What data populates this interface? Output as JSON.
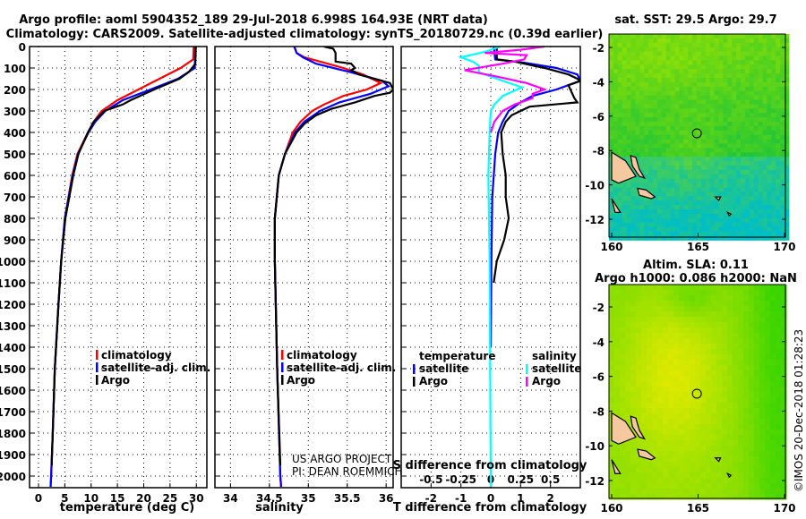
{
  "title": {
    "line1": "Argo profile: aoml 5904352_189 29-Jul-2018 6.998S 164.93E (NRT data)",
    "line2": "Climatology: CARS2009. Satellite-adjusted climatology: synTS_20180729.nc (0.39d earlier)"
  },
  "colors": {
    "climatology": "#ff0000",
    "satellite": "#0000ff",
    "argo": "#000000",
    "sal_satellite": "#00ffff",
    "sal_argo": "#ff00ff"
  },
  "credit": {
    "line1": "US ARGO PROJECT",
    "line2": "PI: DEAN ROEMMICH"
  },
  "imos_stamp": "©IMOS 20-Dec-2018 01:28:23",
  "chart_data": [
    {
      "type": "line",
      "name": "temperature",
      "xlabel": "temperature (deg C)",
      "ylabel": "",
      "xlim": [
        -1.7,
        32
      ],
      "ylim": [
        2055,
        0
      ],
      "xticks": [
        0,
        5,
        10,
        15,
        20,
        25,
        30
      ],
      "yticks": [
        0,
        100,
        200,
        300,
        400,
        500,
        600,
        700,
        800,
        900,
        1000,
        1100,
        1200,
        1300,
        1400,
        1500,
        1600,
        1700,
        1800,
        1900,
        2000
      ],
      "grid": true,
      "legend": {
        "placement": "lower-right",
        "entries": [
          "climatology",
          "satellite-adj. clim.",
          "Argo"
        ]
      },
      "series": [
        {
          "name": "climatology",
          "color": "#ff0000",
          "depth": [
            0,
            60,
            100,
            150,
            200,
            250,
            300,
            350,
            400,
            500,
            600,
            800,
            1000,
            1200,
            1500,
            1800,
            2000,
            2050
          ],
          "values": [
            29.5,
            29.4,
            27,
            23,
            19,
            15,
            12,
            10.5,
            9.4,
            7.4,
            6.4,
            5,
            4.3,
            3.8,
            3.1,
            2.7,
            2.4,
            2.3
          ]
        },
        {
          "name": "satellite-adj. clim.",
          "color": "#0000ff",
          "depth": [
            0,
            100,
            150,
            200,
            250,
            300,
            350,
            400,
            500,
            600,
            800,
            1000,
            1200,
            1500,
            1800,
            2000,
            2050
          ],
          "values": [
            29.8,
            29.7,
            26.5,
            21.3,
            16,
            12.7,
            10.8,
            9.5,
            7.5,
            6.5,
            5,
            4.3,
            3.8,
            3.1,
            2.7,
            2.4,
            2.3
          ]
        },
        {
          "name": "Argo",
          "color": "#000000",
          "depth": [
            0,
            80,
            100,
            120,
            150,
            200,
            250,
            270,
            300,
            350,
            400,
            500,
            600,
            800,
            1000,
            1200,
            1500,
            1800,
            1950
          ],
          "values": [
            29.9,
            29.8,
            29.2,
            28.5,
            26.8,
            22,
            17.5,
            16,
            12.5,
            10.5,
            9.4,
            7.6,
            6.6,
            5.1,
            4.3,
            3.8,
            3.1,
            2.7,
            2.5
          ]
        }
      ]
    },
    {
      "type": "line",
      "name": "salinity",
      "xlabel": "salinity",
      "xlim": [
        33.8,
        36.09
      ],
      "ylim": [
        2055,
        0
      ],
      "xticks": [
        34,
        34.5,
        35,
        35.5,
        36
      ],
      "grid": true,
      "legend": {
        "placement": "lower-right",
        "entries": [
          "climatology",
          "satellite-adj. clim.",
          "Argo"
        ]
      },
      "series": [
        {
          "name": "climatology",
          "color": "#ff0000",
          "depth": [
            0,
            30,
            50,
            70,
            100,
            130,
            170,
            200,
            230,
            270,
            300,
            350,
            400,
            500,
            600,
            800,
            1000,
            1500,
            2000,
            2050
          ],
          "values": [
            34.82,
            34.85,
            34.95,
            35.15,
            35.45,
            35.7,
            35.93,
            35.75,
            35.45,
            35.2,
            35.05,
            34.9,
            34.8,
            34.7,
            34.62,
            34.57,
            34.57,
            34.6,
            34.64,
            34.65
          ]
        },
        {
          "name": "satellite-adj. clim.",
          "color": "#0000ff",
          "depth": [
            0,
            30,
            50,
            80,
            120,
            160,
            185,
            220,
            260,
            300,
            350,
            400,
            500,
            600,
            800,
            1000,
            1500,
            2000,
            2050
          ],
          "values": [
            34.82,
            34.85,
            34.93,
            35.1,
            35.55,
            35.95,
            36.03,
            35.8,
            35.4,
            35.15,
            34.95,
            34.83,
            34.7,
            34.62,
            34.57,
            34.57,
            34.6,
            34.64,
            34.65
          ]
        },
        {
          "name": "Argo",
          "color": "#000000",
          "depth": [
            0,
            10,
            30,
            70,
            80,
            100,
            110,
            130,
            170,
            200,
            215,
            230,
            260,
            290,
            320,
            360,
            400,
            500,
            600,
            800,
            1000,
            1500,
            1950
          ],
          "values": [
            35.2,
            35.32,
            35.35,
            35.35,
            35.55,
            35.6,
            35.55,
            35.65,
            36.05,
            36.09,
            36.05,
            35.85,
            35.6,
            35.3,
            35.1,
            34.95,
            34.85,
            34.7,
            34.62,
            34.57,
            34.57,
            34.6,
            34.64
          ]
        }
      ]
    },
    {
      "type": "line",
      "name": "difference",
      "xlabel": "T difference from climatology",
      "xlim": [
        -3,
        3
      ],
      "ylim": [
        2055,
        0
      ],
      "xticks": [
        -2,
        -1,
        0,
        1,
        2
      ],
      "xlabel2": "S difference from climatology",
      "x2lim": [
        -0.75,
        0.75
      ],
      "x2ticks": [
        "-0.5",
        "-0.25",
        "0",
        "0.25",
        "0.5"
      ],
      "grid": true,
      "legend": {
        "placement": "lower",
        "temperature_title": "temperature",
        "salinity_title": "salinity",
        "entries": [
          "satellite",
          "Argo",
          "satellite",
          "Argo"
        ]
      },
      "series": [
        {
          "name": "T satellite",
          "color": "#0000ff",
          "axis": "T",
          "depth": [
            0,
            60,
            75,
            100,
            130,
            160,
            200,
            230,
            260,
            300,
            350,
            400,
            500,
            700,
            1000,
            1400
          ],
          "values": [
            0.1,
            0.15,
            1.1,
            2.2,
            2.9,
            3.0,
            2.2,
            1.4,
            1.0,
            0.6,
            0.4,
            0.25,
            0.15,
            0.05,
            0.02,
            0.0
          ]
        },
        {
          "name": "T Argo",
          "color": "#000000",
          "axis": "T",
          "depth": [
            0,
            60,
            70,
            100,
            130,
            150,
            160,
            180,
            240,
            260,
            280,
            320,
            350,
            400,
            500,
            600,
            700,
            800,
            900,
            1000,
            1100
          ],
          "values": [
            0.2,
            0.2,
            0.8,
            1.8,
            2.6,
            2.9,
            3.0,
            2.6,
            2.8,
            2.9,
            1.3,
            0.7,
            0.5,
            0.35,
            0.4,
            0.5,
            0.5,
            0.6,
            0.45,
            0.2,
            0.1
          ]
        },
        {
          "name": "S satellite",
          "color": "#00ffff",
          "axis": "S",
          "depth": [
            0,
            25,
            50,
            70,
            90,
            120,
            150,
            190,
            230,
            270,
            300,
            400,
            600,
            1000,
            2050
          ],
          "values": [
            0.08,
            -0.05,
            -0.25,
            -0.15,
            -0.1,
            -0.1,
            0.05,
            0.26,
            0.1,
            0.03,
            0.0,
            -0.01,
            -0.02,
            -0.01,
            0.0
          ]
        },
        {
          "name": "S Argo",
          "color": "#ff00ff",
          "axis": "S",
          "depth": [
            0,
            15,
            30,
            40,
            60,
            80,
            110,
            140,
            170,
            200,
            220,
            240,
            270,
            300,
            350,
            400
          ],
          "values": [
            0.45,
            0.25,
            -0.05,
            0.3,
            0.28,
            0.1,
            -0.22,
            0.05,
            0.3,
            0.45,
            0.35,
            0.35,
            0.2,
            0.1,
            0.03,
            0.0
          ]
        }
      ]
    },
    {
      "type": "heatmap",
      "name": "sst-map",
      "title": "sat. SST: 29.5 Argo: 29.7",
      "xlim": [
        160,
        170
      ],
      "ylim": [
        -13,
        -1.7
      ],
      "xticks": [
        160,
        165,
        170
      ],
      "yticks": [
        -2,
        -4,
        -6,
        -8,
        -10,
        -12
      ],
      "profile_location": [
        164.93,
        -6.998
      ]
    },
    {
      "type": "heatmap",
      "name": "sla-map",
      "title": "Altim. SLA: 0.11",
      "subtitle": "Argo h1000: 0.086 h2000: NaN",
      "xlim": [
        160,
        170
      ],
      "ylim": [
        -13,
        -1
      ],
      "xticks": [
        160,
        165,
        170
      ],
      "yticks": [
        -2,
        -4,
        -6,
        -8,
        -10,
        -12
      ],
      "profile_location": [
        164.93,
        -6.998
      ]
    }
  ]
}
